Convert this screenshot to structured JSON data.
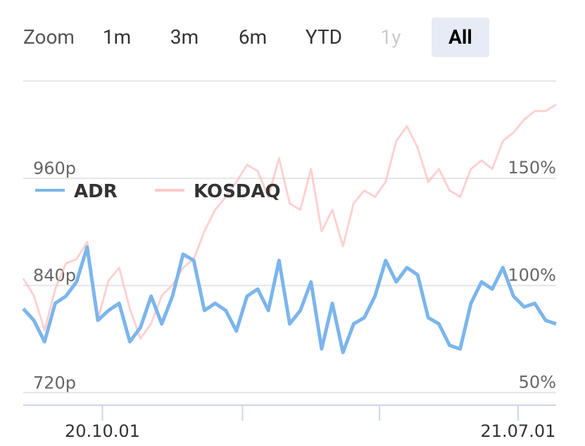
{
  "range_selector": {
    "label": "Zoom",
    "buttons": [
      "1m",
      "3m",
      "6m",
      "YTD",
      "1y",
      "All"
    ],
    "selected": 5,
    "disabled": [
      4
    ]
  },
  "chart_data": {
    "type": "line",
    "x": [
      "2020-08-10",
      "2020-08-17",
      "2020-08-24",
      "2020-08-31",
      "2020-09-07",
      "2020-09-14",
      "2020-09-21",
      "2020-09-28",
      "2020-10-05",
      "2020-10-12",
      "2020-10-19",
      "2020-10-26",
      "2020-11-02",
      "2020-11-09",
      "2020-11-16",
      "2020-11-23",
      "2020-11-30",
      "2020-12-07",
      "2020-12-14",
      "2020-12-21",
      "2020-12-28",
      "2021-01-04",
      "2021-01-11",
      "2021-01-18",
      "2021-01-25",
      "2021-02-01",
      "2021-02-08",
      "2021-02-15",
      "2021-02-22",
      "2021-03-01",
      "2021-03-08",
      "2021-03-15",
      "2021-03-22",
      "2021-03-29",
      "2021-04-05",
      "2021-04-12",
      "2021-04-19",
      "2021-04-26",
      "2021-05-03",
      "2021-05-10",
      "2021-05-17",
      "2021-05-24",
      "2021-05-31",
      "2021-06-07",
      "2021-06-14",
      "2021-06-21",
      "2021-06-28",
      "2021-07-05",
      "2021-07-12",
      "2021-07-19",
      "2021-07-26"
    ],
    "xlim": [
      "2020-08-10",
      "2021-07-26"
    ],
    "xticks": [
      {
        "value": "2020-10-01",
        "label": "20.10.01"
      },
      {
        "value": "2021-01-01",
        "label": null
      },
      {
        "value": "2021-04-01",
        "label": null
      },
      {
        "value": "2021-07-01",
        "label": "21.07.01"
      }
    ],
    "ylim": [
      706,
      1069
    ],
    "yticks": [
      {
        "value": 720,
        "label": "720p"
      },
      {
        "value": 840,
        "label": "840p"
      },
      {
        "value": 960,
        "label": "960p"
      }
    ],
    "y2lim": [
      44,
      195
    ],
    "y2ticks": [
      {
        "value": 50,
        "label": "50%"
      },
      {
        "value": 100,
        "label": "100%"
      },
      {
        "value": 150,
        "label": "150%"
      }
    ],
    "grid": true,
    "legend": "top-left",
    "series": [
      {
        "name": "ADR",
        "color": "#7cb5ec",
        "values": [
          814,
          801,
          777,
          820,
          828,
          844,
          883,
          801,
          812,
          820,
          777,
          793,
          828,
          797,
          828,
          875,
          868,
          812,
          820,
          812,
          789,
          828,
          836,
          812,
          868,
          797,
          812,
          844,
          769,
          820,
          765,
          797,
          804,
          828,
          868,
          844,
          860,
          852,
          804,
          797,
          773,
          769,
          820,
          844,
          836,
          860,
          828,
          816,
          820,
          801,
          797
        ]
      },
      {
        "name": "KOSDAQ",
        "color": "#ffb3b3",
        "axis": "y2",
        "values": [
          103,
          95,
          79,
          98,
          110,
          112,
          120,
          84,
          102,
          108,
          89,
          75,
          82,
          95,
          100,
          108,
          112,
          125,
          135,
          141,
          148,
          156,
          153,
          141,
          159,
          138,
          135,
          154,
          125,
          135,
          118,
          138,
          144,
          141,
          148,
          167,
          174,
          164,
          148,
          154,
          144,
          141,
          154,
          158,
          154,
          167,
          171,
          177,
          181,
          181,
          184
        ]
      }
    ]
  }
}
